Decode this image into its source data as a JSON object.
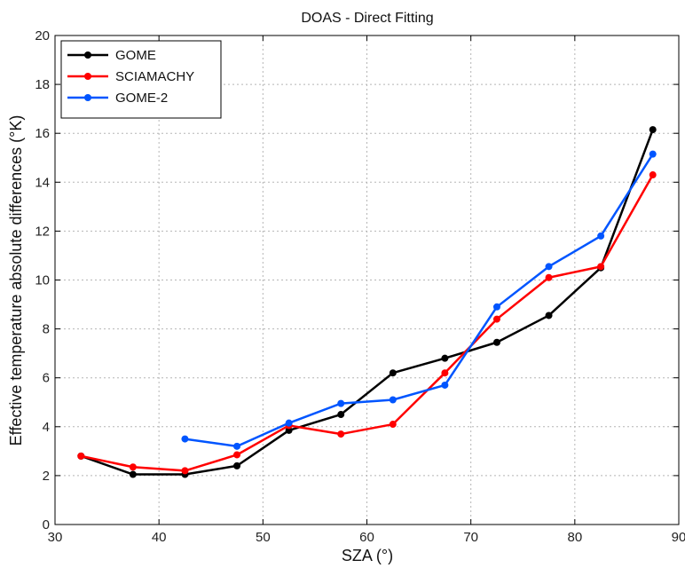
{
  "chart_data": {
    "type": "line",
    "title": "DOAS - Direct Fitting",
    "xlabel": "SZA (°)",
    "ylabel": "Effective temperature absolute differences (°K)",
    "xlim": [
      30,
      90
    ],
    "ylim": [
      0,
      20
    ],
    "xticks": [
      30,
      40,
      50,
      60,
      70,
      80,
      90
    ],
    "yticks": [
      0,
      2,
      4,
      6,
      8,
      10,
      12,
      14,
      16,
      18,
      20
    ],
    "grid": true,
    "legend_position": "top-left",
    "series": [
      {
        "name": "GOME",
        "color": "#000000",
        "x": [
          32.5,
          37.5,
          42.5,
          47.5,
          52.5,
          57.5,
          62.5,
          67.5,
          72.5,
          77.5,
          82.5,
          87.5
        ],
        "y": [
          2.8,
          2.05,
          2.05,
          2.4,
          3.85,
          4.5,
          6.2,
          6.8,
          7.45,
          8.55,
          10.5,
          16.15
        ]
      },
      {
        "name": "SCIAMACHY",
        "color": "#ff0000",
        "x": [
          32.5,
          37.5,
          42.5,
          47.5,
          52.5,
          57.5,
          62.5,
          67.5,
          72.5,
          77.5,
          82.5,
          87.5
        ],
        "y": [
          2.8,
          2.35,
          2.2,
          2.85,
          4.05,
          3.7,
          4.1,
          6.2,
          8.4,
          10.1,
          10.55,
          14.3
        ]
      },
      {
        "name": "GOME-2",
        "color": "#0055ff",
        "x": [
          42.5,
          47.5,
          52.5,
          57.5,
          62.5,
          67.5,
          72.5,
          77.5,
          82.5,
          87.5
        ],
        "y": [
          3.5,
          3.2,
          4.15,
          4.95,
          5.1,
          5.7,
          8.9,
          10.55,
          11.8,
          15.15
        ]
      }
    ]
  }
}
